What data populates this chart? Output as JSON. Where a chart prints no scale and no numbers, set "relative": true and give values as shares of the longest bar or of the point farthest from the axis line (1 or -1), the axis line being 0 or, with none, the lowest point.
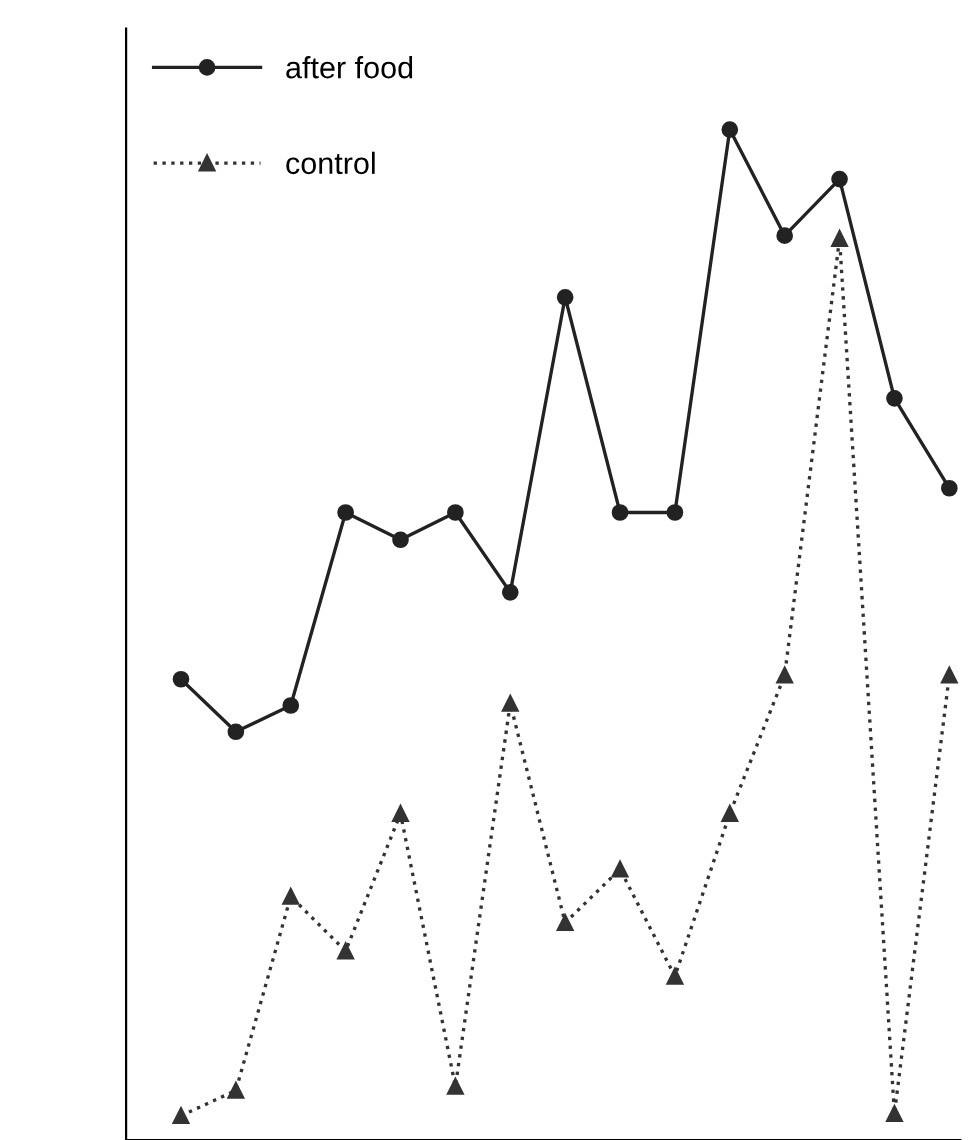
{
  "chart_data": {
    "type": "line",
    "relative": true,
    "categories": [
      null,
      null,
      null,
      null,
      null,
      null,
      null,
      null,
      null,
      null,
      null,
      null,
      null,
      null,
      null
    ],
    "series": [
      {
        "name": "after food",
        "color": "#222222",
        "marker": "circle",
        "line_style": "solid",
        "values": [
          0.456,
          0.404,
          0.43,
          0.621,
          0.594,
          0.621,
          0.542,
          0.834,
          0.621,
          0.621,
          1,
          0.895,
          0.951,
          0.734,
          0.645
        ]
      },
      {
        "name": "control",
        "color": "#333333",
        "marker": "triangle",
        "line_style": "dotted",
        "values": [
          0.024,
          0.049,
          0.241,
          0.187,
          0.323,
          0.053,
          0.432,
          0.215,
          0.268,
          0.162,
          0.323,
          0.46,
          0.892,
          0.026,
          0.46
        ]
      }
    ],
    "legend": "top left",
    "grid": false
  }
}
